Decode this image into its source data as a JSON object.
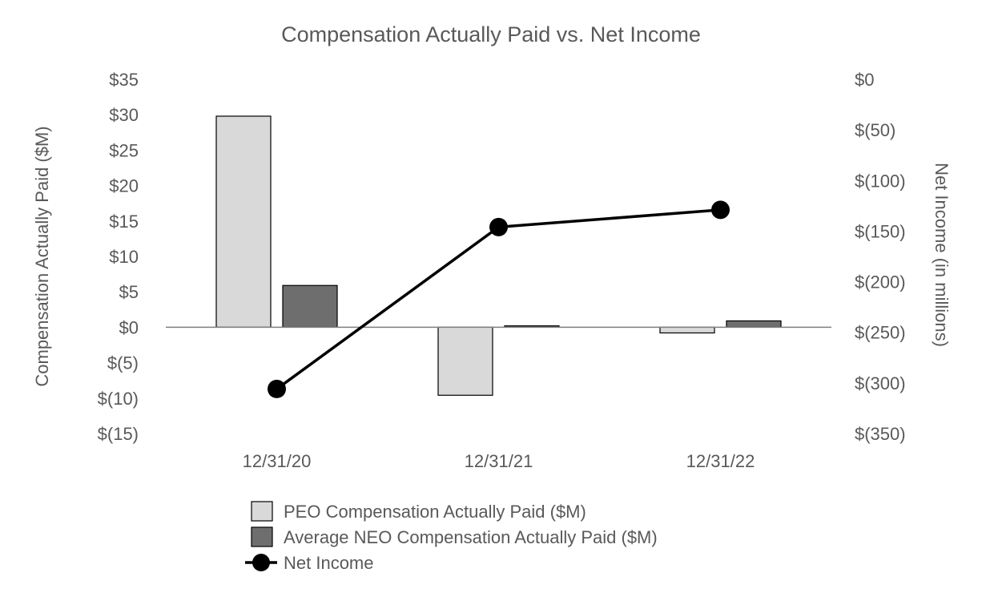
{
  "chart_data": {
    "type": "bar",
    "title": "Compensation Actually Paid vs. Net Income",
    "ylabel": "Compensation Actually Paid ($M)",
    "y2label": "Net Income (in millions)",
    "categories": [
      "12/31/20",
      "12/31/21",
      "12/31/22"
    ],
    "ylim": [
      -15,
      35
    ],
    "y2lim": [
      -350,
      0
    ],
    "yticks": [
      35,
      30,
      25,
      20,
      15,
      10,
      5,
      0,
      -5,
      -10,
      -15
    ],
    "yticklabels": [
      "$35",
      "$30",
      "$25",
      "$20",
      "$15",
      "$10",
      "$5",
      "$0",
      "$(5)",
      "$(10)",
      "$(15)"
    ],
    "y2ticks": [
      0,
      -50,
      -100,
      -150,
      -200,
      -250,
      -300,
      -350
    ],
    "y2ticklabels": [
      "$0",
      "$(50)",
      "$(100)",
      "$(150)",
      "$(200)",
      "$(250)",
      "$(300)",
      "$(350)"
    ],
    "series": [
      {
        "name": "PEO Compensation Actually Paid ($M)",
        "type": "bar",
        "axis": "left",
        "color": "#d9d9d9",
        "values": [
          29.8,
          -9.6,
          -0.8
        ]
      },
      {
        "name": "Average NEO Compensation Actually Paid ($M)",
        "type": "bar",
        "axis": "left",
        "color": "#6e6e6e",
        "values": [
          5.9,
          0.2,
          0.9
        ]
      },
      {
        "name": "Net Income",
        "type": "line",
        "axis": "right",
        "color": "#000000",
        "values": [
          -306,
          -146,
          -129
        ]
      }
    ],
    "grid": false,
    "legend_position": "bottom"
  }
}
